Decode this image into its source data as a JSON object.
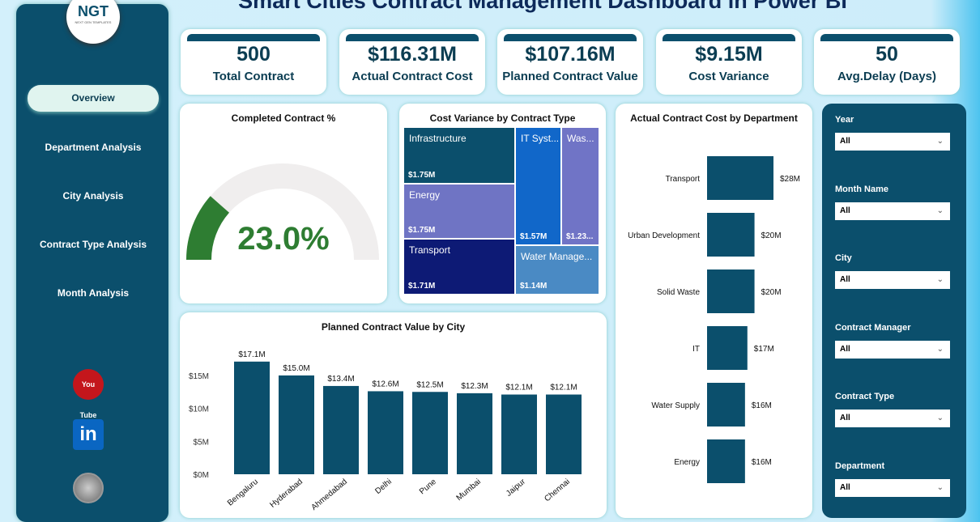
{
  "title": "Smart Cities Contract Management Dashboard in Power BI",
  "logo": {
    "text": "NGT",
    "sub": "NEXT GEN TEMPLATES"
  },
  "nav": [
    "Overview",
    "Department Analysis",
    "City Analysis",
    "Contract Type Analysis",
    "Month Analysis"
  ],
  "social_icons": [
    "youtube-icon",
    "linkedin-icon",
    "website-icon"
  ],
  "youtube_text": "You Tube",
  "linkedin_text": "in",
  "kpis": [
    {
      "value": "500",
      "label": "Total Contract"
    },
    {
      "value": "$116.31M",
      "label": "Actual Contract Cost"
    },
    {
      "value": "$107.16M",
      "label": "Planned Contract Value"
    },
    {
      "value": "$9.15M",
      "label": "Cost Variance"
    },
    {
      "value": "50",
      "label": "Avg.Delay (Days)"
    }
  ],
  "gauge": {
    "title": "Completed Contract %",
    "value": 23.0,
    "label": "23.0%",
    "color": "#2e7d32"
  },
  "treemap": {
    "title": "Cost Variance by Contract Type",
    "items": [
      {
        "name": "Infrastructure",
        "value": "$1.75M",
        "color": "#0b4f6c"
      },
      {
        "name": "Energy",
        "value": "$1.75M",
        "color": "#6f74c4"
      },
      {
        "name": "Transport",
        "value": "$1.71M",
        "color": "#0d1a75"
      },
      {
        "name": "IT Syst...",
        "value": "$1.57M",
        "color": "#1167c9"
      },
      {
        "name": "Was...",
        "value": "$1.23...",
        "color": "#7074c6"
      },
      {
        "name": "Water Manage...",
        "value": "$1.14M",
        "color": "#4a8ac4"
      }
    ]
  },
  "chart_data": [
    {
      "type": "bar",
      "title": "Planned Contract Value by City",
      "categories": [
        "Bengaluru",
        "Hyderabad",
        "Ahmedabad",
        "Delhi",
        "Pune",
        "Mumbai",
        "Jaipur",
        "Chennai"
      ],
      "values": [
        17.1,
        15.0,
        13.4,
        12.6,
        12.5,
        12.3,
        12.1,
        12.1
      ],
      "data_labels": [
        "$17.1M",
        "$15.0M",
        "$13.4M",
        "$12.6M",
        "$12.5M",
        "$12.3M",
        "$12.1M",
        "$12.1M"
      ],
      "yticks": [
        "$0M",
        "$5M",
        "$10M",
        "$15M"
      ],
      "ylim": [
        0,
        20
      ],
      "color": "#0b4f6c"
    },
    {
      "type": "bar",
      "orientation": "horizontal",
      "title": "Actual Contract Cost by Department",
      "categories": [
        "Transport",
        "Urban Development",
        "Solid Waste",
        "IT",
        "Water Supply",
        "Energy"
      ],
      "values": [
        28,
        20,
        20,
        17,
        16,
        16
      ],
      "data_labels": [
        "$28M",
        "$20M",
        "$20M",
        "$17M",
        "$16M",
        "$16M"
      ],
      "color": "#0b4f6c"
    }
  ],
  "slicers": [
    {
      "label": "Year",
      "value": "All"
    },
    {
      "label": "Month Name",
      "value": "All"
    },
    {
      "label": "City",
      "value": "All"
    },
    {
      "label": "Contract Manager",
      "value": "All"
    },
    {
      "label": "Contract Type",
      "value": "All"
    },
    {
      "label": "Department",
      "value": "All"
    }
  ]
}
